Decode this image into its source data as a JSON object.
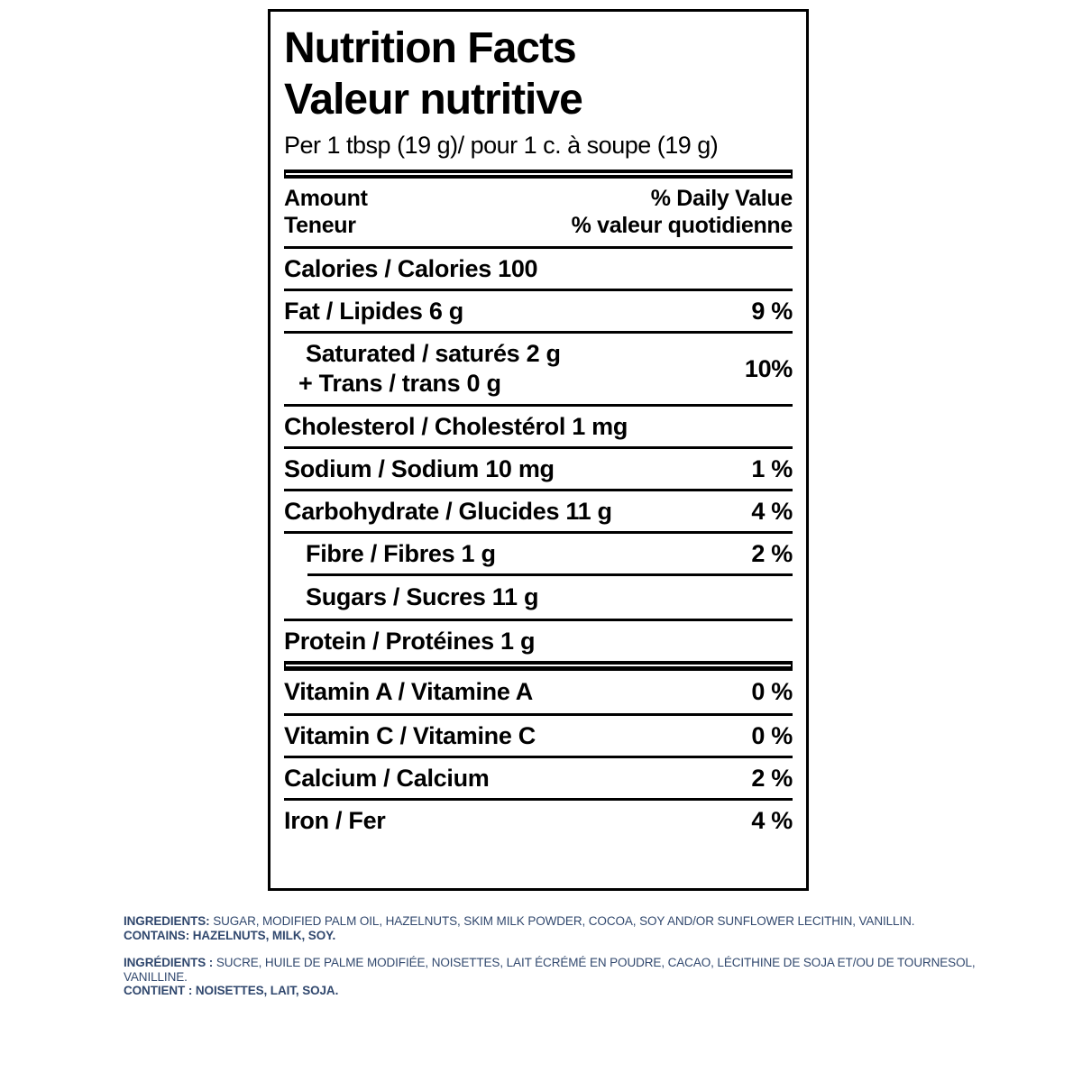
{
  "label": {
    "title_en": "Nutrition Facts",
    "title_fr": "Valeur nutritive",
    "serving_line": "Per 1 tbsp (19 g)/ pour 1 c. à soupe (19 g)",
    "amount_en": "Amount",
    "amount_fr": "Teneur",
    "daily_value_en": "% Daily Value",
    "daily_value_fr": "% valeur quotidienne",
    "rows": [
      {
        "text": "Calories / Calories 100",
        "dv": ""
      },
      {
        "text": "Fat / Lipides 6 g",
        "dv": "9 %"
      },
      {
        "text_line1": "Saturated / saturés 2 g",
        "text_line2": "+ Trans / trans 0 g",
        "dv": "10%"
      },
      {
        "text": "Cholesterol / Cholestérol 1 mg",
        "dv": ""
      },
      {
        "text": "Sodium / Sodium 10 mg",
        "dv": "1 %"
      },
      {
        "text": "Carbohydrate / Glucides 11 g",
        "dv": "4 %"
      },
      {
        "text": "Fibre / Fibres 1 g",
        "dv": "2 %"
      },
      {
        "text": "Sugars / Sucres 11 g",
        "dv": ""
      },
      {
        "text": "Protein / Protéines 1 g",
        "dv": ""
      },
      {
        "text": "Vitamin A / Vitamine A",
        "dv": "0 %"
      },
      {
        "text": "Vitamin C / Vitamine C",
        "dv": "0 %"
      },
      {
        "text": "Calcium / Calcium",
        "dv": "2 %"
      },
      {
        "text": "Iron / Fer",
        "dv": "4 %"
      }
    ]
  },
  "ingredients": {
    "text_color": "#31486e",
    "en_label": "INGREDIENTS:",
    "en_text": " SUGAR, MODIFIED PALM OIL, HAZELNUTS, SKIM MILK POWDER, COCOA, SOY AND/OR SUNFLOWER LECITHIN, VANILLIN.",
    "en_contains": "CONTAINS: HAZELNUTS, MILK, SOY.",
    "fr_label": "INGRÉDIENTS :",
    "fr_text": " SUCRE, HUILE DE PALME MODIFIÉE, NOISETTES, LAIT ÉCRÉMÉ EN POUDRE, CACAO, LÉCITHINE DE SOJA ET/OU DE TOURNESOL,",
    "fr_text_line2": "VANILLINE.",
    "fr_contains": "CONTIENT : NOISETTES, LAIT, SOJA."
  }
}
